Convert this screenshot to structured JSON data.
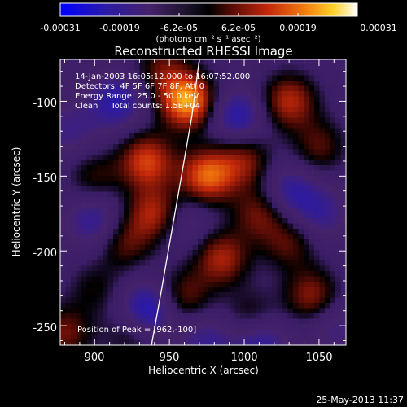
{
  "chart_data": {
    "type": "heatmap",
    "title": "Reconstructed RHESSI Image",
    "xlabel": "Heliocentric X (arcsec)",
    "ylabel": "Heliocentric Y (arcsec)",
    "xlim": [
      877,
      1068
    ],
    "ylim": [
      -263,
      -72
    ],
    "xticks": [
      "900",
      "950",
      "1000",
      "1050"
    ],
    "yticks": [
      "-100",
      "-150",
      "-200",
      "-250"
    ],
    "colorbar": {
      "ticks": [
        "-0.00031",
        "-0.00019",
        "-6.2e-05",
        "6.2e-05",
        "0.00019",
        "0.00031"
      ],
      "unit_label": "(photons cm⁻² s⁻¹ asec⁻²)",
      "range": [
        -0.00031,
        0.00031
      ]
    },
    "info_lines": [
      "14-Jan-2003 16:05:12.000 to 16:07:52.000",
      "Detectors: 4F 5F 6F 7F 8F, Att 0",
      "Energy Range: 25.0 - 50.0 keV",
      "Clean     Total counts: 1.5E+04"
    ],
    "peak_label": "Position of Peak = [962,-100]",
    "peak_position": [
      962,
      -100
    ],
    "limb_points": [
      [
        970,
        -72
      ],
      [
        965,
        -110
      ],
      [
        958,
        -150
      ],
      [
        951,
        -190
      ],
      [
        944,
        -230
      ],
      [
        938,
        -263
      ]
    ],
    "blobs": [
      {
        "x": 962,
        "y": -100,
        "v": 0.00031
      },
      {
        "x": 945,
        "y": -78,
        "v": 0.00012
      },
      {
        "x": 1030,
        "y": -100,
        "v": 0.00019
      },
      {
        "x": 1050,
        "y": -130,
        "v": 0.00012
      },
      {
        "x": 935,
        "y": -140,
        "v": 0.00022
      },
      {
        "x": 940,
        "y": -175,
        "v": 0.00019
      },
      {
        "x": 920,
        "y": -195,
        "v": 0.00012
      },
      {
        "x": 975,
        "y": -150,
        "v": 0.00025
      },
      {
        "x": 1000,
        "y": -140,
        "v": 0.00015
      },
      {
        "x": 900,
        "y": -150,
        "v": 0.0001
      },
      {
        "x": 1010,
        "y": -175,
        "v": 0.00014
      },
      {
        "x": 985,
        "y": -205,
        "v": 0.00018
      },
      {
        "x": 1030,
        "y": -195,
        "v": 0.00012
      },
      {
        "x": 1045,
        "y": -230,
        "v": 0.00016
      },
      {
        "x": 960,
        "y": -230,
        "v": 0.00013
      },
      {
        "x": 1005,
        "y": -245,
        "v": 0.00011
      },
      {
        "x": 880,
        "y": -255,
        "v": 0.00014
      },
      {
        "x": 925,
        "y": -255,
        "v": 0.0001
      },
      {
        "x": 900,
        "y": -225,
        "v": 8e-05
      },
      {
        "x": 915,
        "y": -100,
        "v": -0.00014
      },
      {
        "x": 995,
        "y": -110,
        "v": -0.00015
      },
      {
        "x": 900,
        "y": -180,
        "v": -0.00012
      },
      {
        "x": 960,
        "y": -180,
        "v": -8e-05
      },
      {
        "x": 1030,
        "y": -160,
        "v": -0.00012
      },
      {
        "x": 935,
        "y": -240,
        "v": -0.00019
      },
      {
        "x": 1010,
        "y": -260,
        "v": -0.00015
      },
      {
        "x": 975,
        "y": -260,
        "v": -0.0001
      },
      {
        "x": 1050,
        "y": -175,
        "v": -0.0001
      },
      {
        "x": 885,
        "y": -120,
        "v": -8e-05
      },
      {
        "x": 1060,
        "y": -250,
        "v": -8e-05
      }
    ]
  },
  "footer": {
    "timestamp": "25-May-2013 11:37"
  }
}
